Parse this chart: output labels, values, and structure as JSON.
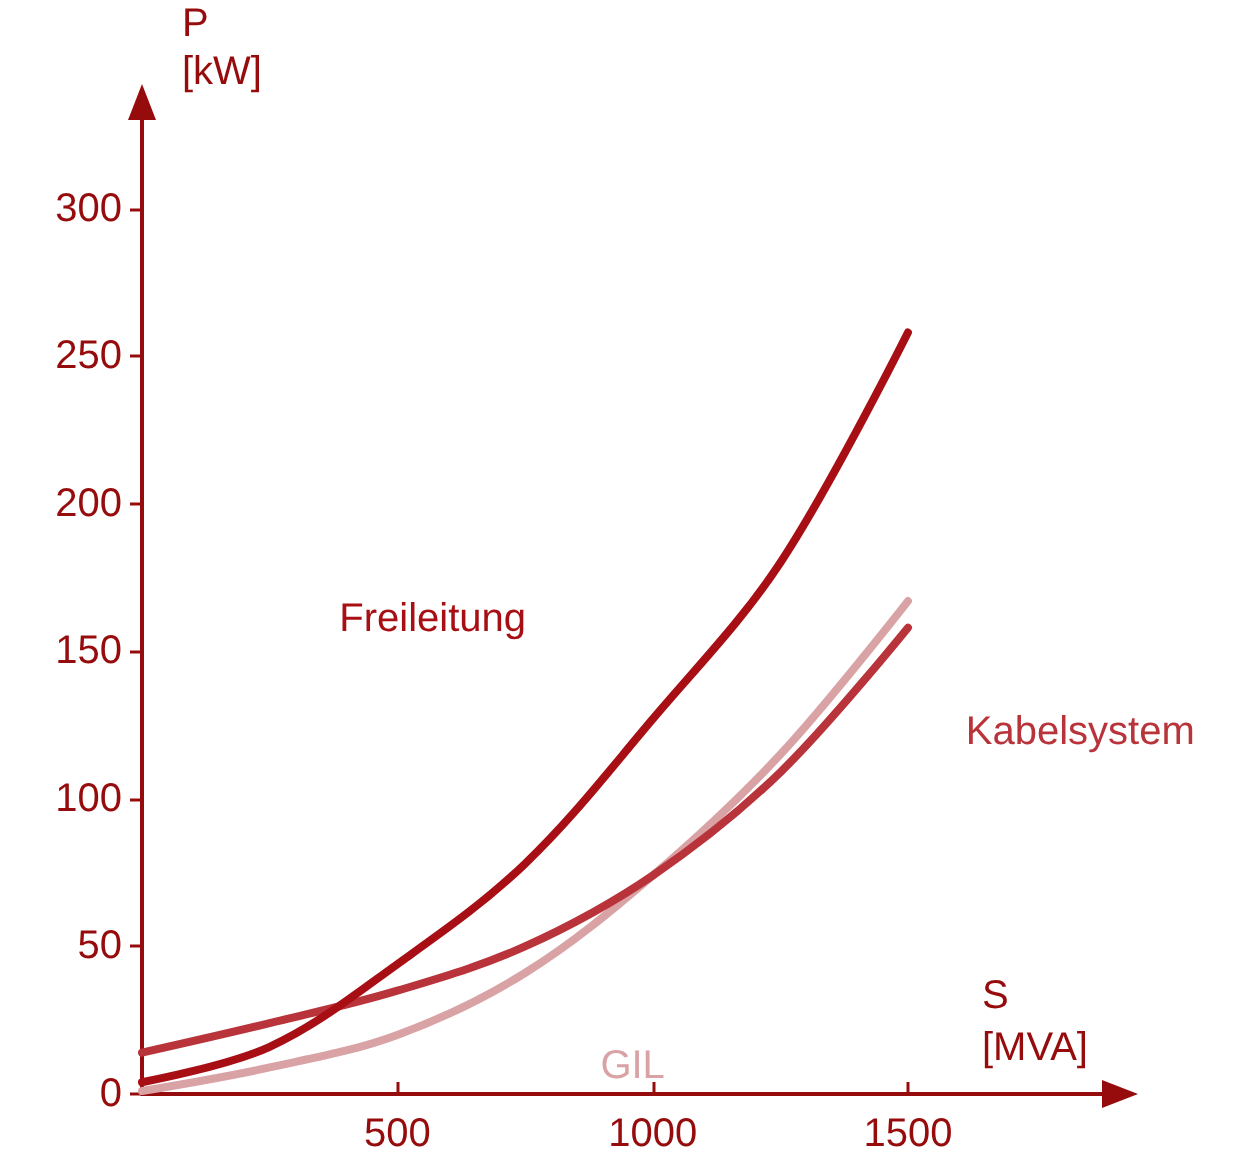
{
  "chart_data": {
    "type": "line",
    "xlabel": "S\n[MVA]",
    "ylabel": "P\n[kW]",
    "x": [
      0,
      250,
      500,
      750,
      1000,
      1250,
      1500
    ],
    "series": [
      {
        "name": "Freileitung",
        "color": "#a80f14",
        "values": [
          4,
          16,
          44,
          78,
          127,
          180,
          258
        ]
      },
      {
        "name": "Kabelsystem",
        "color": "#b8343a",
        "values": [
          14,
          24,
          35,
          50,
          74,
          109,
          158
        ]
      },
      {
        "name": "GIL",
        "color": "#d9a3a5",
        "values": [
          1,
          9,
          20,
          41,
          74,
          115,
          167
        ]
      }
    ],
    "xlim": [
      0,
      1880
    ],
    "ylim": [
      0,
      330
    ],
    "xticks": [
      500,
      1000,
      1500
    ],
    "yticks": [
      0,
      50,
      100,
      150,
      200,
      250,
      300
    ],
    "grid": false,
    "legend": false,
    "marker": "none",
    "line_style": "solid"
  }
}
